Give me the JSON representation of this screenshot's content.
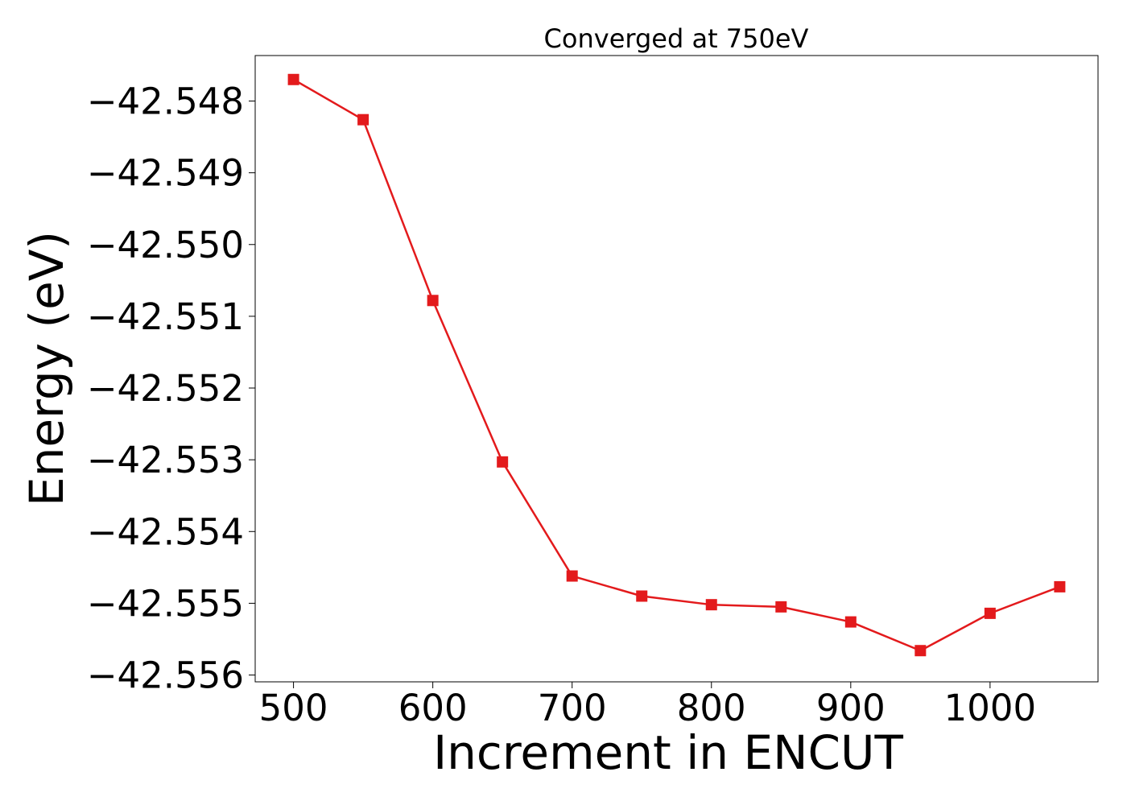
{
  "chart_data": {
    "type": "line",
    "title": "Converged at 750eV",
    "xlabel": "Increment in ENCUT",
    "ylabel": "Energy (eV)",
    "x": [
      500,
      550,
      600,
      650,
      700,
      750,
      800,
      850,
      900,
      950,
      1000,
      1050
    ],
    "series": [
      {
        "values": [
          -42.5477,
          -42.54826,
          -42.55078,
          -42.55303,
          -42.55462,
          -42.5549,
          -42.55502,
          -42.55505,
          -42.55526,
          -42.55566,
          -42.55514,
          -42.55477
        ],
        "color": "#e31a1c",
        "marker": "square"
      }
    ],
    "xticks": [
      500,
      600,
      700,
      800,
      900,
      1000
    ],
    "xtick_labels": [
      "500",
      "600",
      "700",
      "800",
      "900",
      "1000"
    ],
    "yticks": [
      -42.548,
      -42.549,
      -42.55,
      -42.551,
      -42.552,
      -42.553,
      -42.554,
      -42.555,
      -42.556
    ],
    "ytick_labels": [
      "−42.548",
      "−42.549",
      "−42.550",
      "−42.551",
      "−42.552",
      "−42.553",
      "−42.554",
      "−42.555",
      "−42.556"
    ],
    "xlim": [
      472.5,
      1077.5
    ],
    "ylim": [
      -42.556095,
      -42.547366
    ],
    "grid": false,
    "legend": false
  }
}
